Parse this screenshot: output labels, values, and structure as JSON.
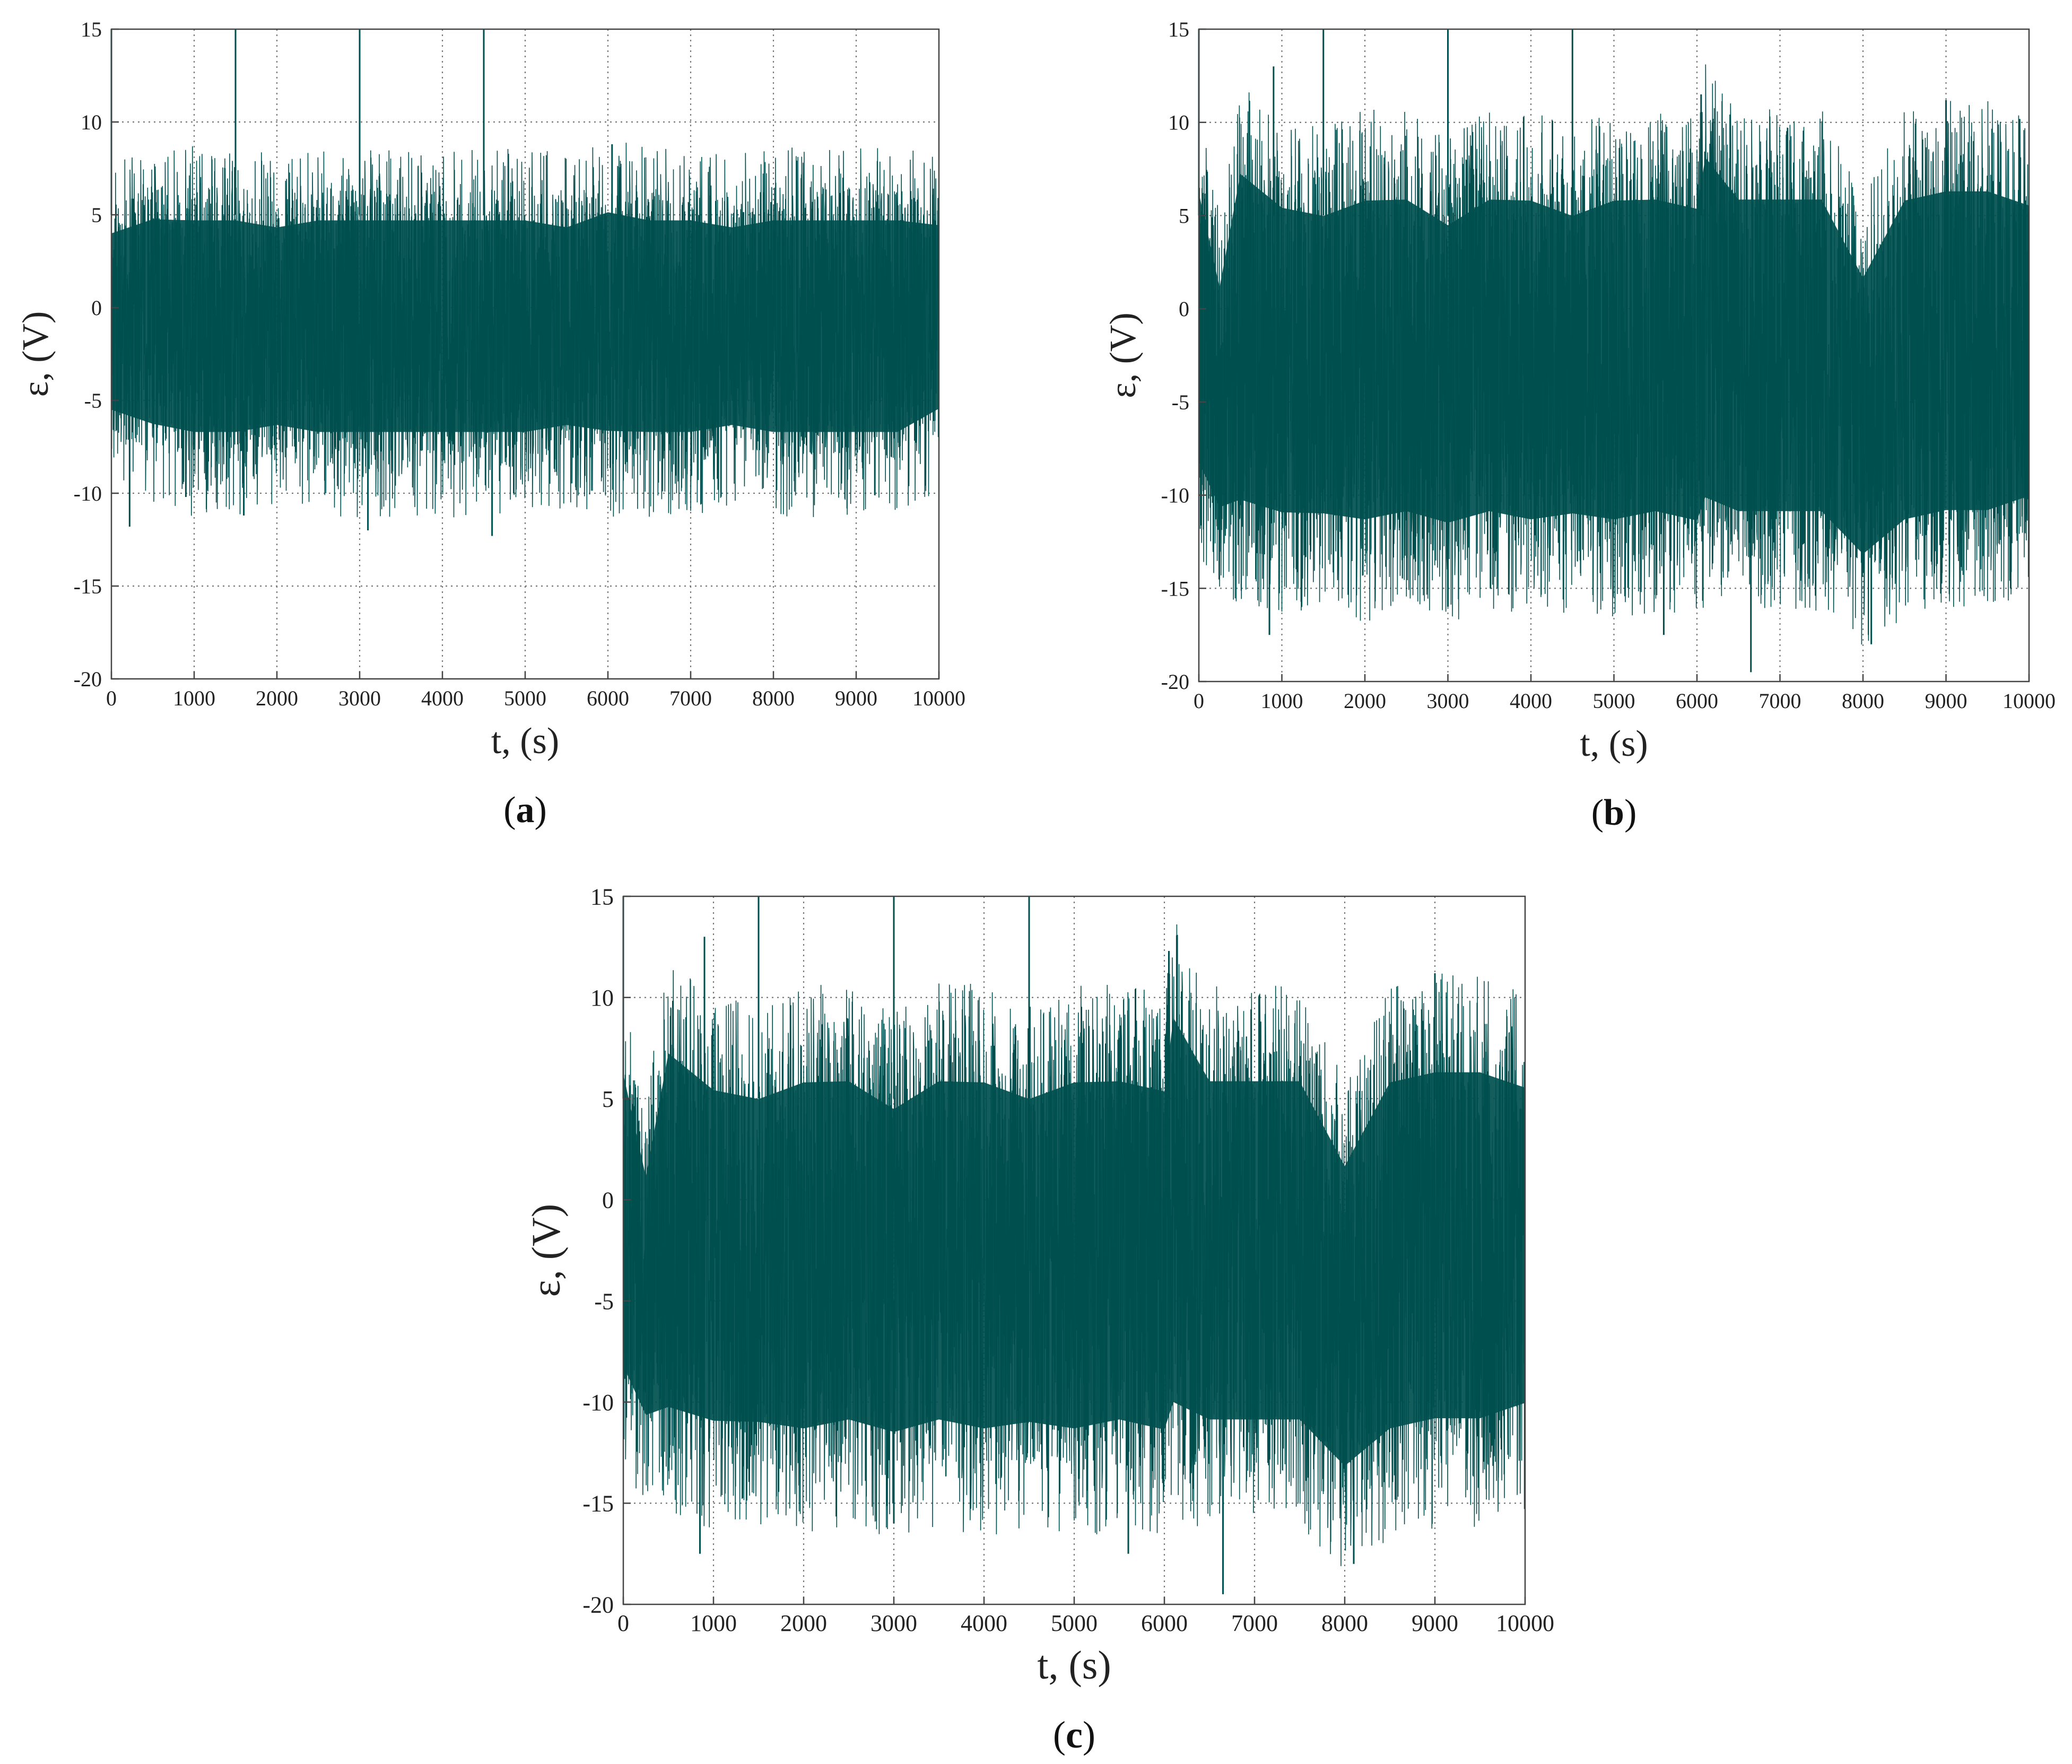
{
  "colors": {
    "signal": "#004f4f",
    "grid": "#777777",
    "frame": "#444444"
  },
  "chart_data": [
    {
      "type": "line",
      "panel_label": "a",
      "xlabel": "t, (s)",
      "ylabel": "ε, (V)",
      "xlim": [
        0,
        10000
      ],
      "ylim": [
        -20,
        15
      ],
      "xticks": [
        0,
        1000,
        2000,
        3000,
        4000,
        5000,
        6000,
        7000,
        8000,
        9000,
        10000
      ],
      "yticks": [
        -20,
        -15,
        -10,
        -5,
        0,
        5,
        10,
        15
      ],
      "grid": true,
      "series": [
        {
          "signal_envelope": {
            "t": [
              0,
              500,
              1000,
              1500,
              2000,
              2500,
              3000,
              3500,
              4000,
              4500,
              5000,
              5500,
              6000,
              6500,
              7000,
              7500,
              8000,
              8500,
              9000,
              9500,
              10000
            ],
            "upper": [
              5.5,
              6.5,
              6.5,
              6.5,
              6.0,
              6.5,
              6.5,
              6.5,
              6.5,
              6.5,
              6.5,
              6.0,
              7.0,
              6.5,
              6.5,
              6.0,
              6.5,
              6.5,
              6.5,
              6.5,
              6.0
            ],
            "lower": [
              -7.0,
              -8.0,
              -8.5,
              -8.5,
              -8.0,
              -8.5,
              -8.5,
              -8.5,
              -8.5,
              -8.5,
              -8.5,
              -8.0,
              -8.5,
              -8.5,
              -8.5,
              -8.0,
              -8.5,
              -8.5,
              -8.5,
              -8.5,
              -7.0
            ]
          },
          "spikes": [
            {
              "t": 0,
              "value": 15
            },
            {
              "t": 1500,
              "value": 15
            },
            {
              "t": 3000,
              "value": 15
            },
            {
              "t": 4500,
              "value": 15
            },
            {
              "t": 6050,
              "value": 8.8
            },
            {
              "t": 220,
              "value": -11.8
            },
            {
              "t": 1600,
              "value": -11.2
            },
            {
              "t": 3100,
              "value": -12.0
            },
            {
              "t": 4600,
              "value": -12.3
            },
            {
              "t": 900,
              "value": -10.2
            }
          ]
        }
      ]
    },
    {
      "type": "line",
      "panel_label": "b",
      "xlabel": "t, (s)",
      "ylabel": "ε, (V)",
      "xlim": [
        0,
        10000
      ],
      "ylim": [
        -20,
        15
      ],
      "xticks": [
        0,
        1000,
        2000,
        3000,
        4000,
        5000,
        6000,
        7000,
        8000,
        9000,
        10000
      ],
      "yticks": [
        -20,
        -15,
        -10,
        -5,
        0,
        5,
        10,
        15
      ],
      "grid": true,
      "series": [
        {
          "signal_envelope": {
            "t": [
              0,
              250,
              500,
              1000,
              1500,
              2000,
              2500,
              3000,
              3500,
              4000,
              4500,
              5000,
              5500,
              6000,
              6100,
              6500,
              7000,
              7500,
              8000,
              8500,
              9000,
              9500,
              10000
            ],
            "upper": [
              8.5,
              3.0,
              10.0,
              8.0,
              7.5,
              8.5,
              8.5,
              7.0,
              8.5,
              8.5,
              7.5,
              8.5,
              8.5,
              8.0,
              11.0,
              8.5,
              8.5,
              8.5,
              4.0,
              8.5,
              9.0,
              9.0,
              8.0
            ],
            "lower": [
              -10.5,
              -12.5,
              -13.0,
              -13.5,
              -13.5,
              -14.0,
              -13.5,
              -14.0,
              -13.5,
              -14.0,
              -13.5,
              -14.0,
              -13.5,
              -14.0,
              -13.0,
              -13.5,
              -13.5,
              -13.5,
              -15.5,
              -14.0,
              -13.5,
              -13.5,
              -12.5
            ]
          },
          "spikes": [
            {
              "t": 0,
              "value": 15
            },
            {
              "t": 1500,
              "value": 15
            },
            {
              "t": 3000,
              "value": 15
            },
            {
              "t": 4500,
              "value": 15
            },
            {
              "t": 6050,
              "value": 11.5
            },
            {
              "t": 900,
              "value": 13.0
            },
            {
              "t": 9000,
              "value": 11.2
            },
            {
              "t": 6650,
              "value": -19.5
            },
            {
              "t": 8100,
              "value": -18.0
            },
            {
              "t": 850,
              "value": -17.5
            },
            {
              "t": 5600,
              "value": -17.5
            },
            {
              "t": 3000,
              "value": -16.0
            }
          ]
        }
      ]
    },
    {
      "type": "line",
      "panel_label": "c",
      "xlabel": "t, (s)",
      "ylabel": "ε, (V)",
      "xlim": [
        0,
        10000
      ],
      "ylim": [
        -20,
        15
      ],
      "xticks": [
        0,
        1000,
        2000,
        3000,
        4000,
        5000,
        6000,
        7000,
        8000,
        9000,
        10000
      ],
      "yticks": [
        -20,
        -15,
        -10,
        -5,
        0,
        5,
        10,
        15
      ],
      "grid": true,
      "series": [
        {
          "signal_envelope": {
            "t": [
              0,
              250,
              500,
              1000,
              1500,
              2000,
              2500,
              3000,
              3500,
              4000,
              4500,
              5000,
              5500,
              6000,
              6100,
              6500,
              7000,
              7500,
              8000,
              8500,
              9000,
              9500,
              10000
            ],
            "upper": [
              8.5,
              3.0,
              10.0,
              8.0,
              7.5,
              8.5,
              8.5,
              7.0,
              8.5,
              8.5,
              7.5,
              8.5,
              8.5,
              8.0,
              12.0,
              8.5,
              8.5,
              8.5,
              4.0,
              8.5,
              9.0,
              9.0,
              8.0
            ],
            "lower": [
              -10.5,
              -12.5,
              -13.0,
              -13.5,
              -13.5,
              -14.0,
              -13.5,
              -14.0,
              -13.5,
              -14.0,
              -13.5,
              -14.0,
              -13.5,
              -14.0,
              -13.0,
              -13.5,
              -13.5,
              -13.5,
              -15.5,
              -14.0,
              -13.5,
              -13.5,
              -12.5
            ]
          },
          "spikes": [
            {
              "t": 0,
              "value": 15
            },
            {
              "t": 1500,
              "value": 15
            },
            {
              "t": 3000,
              "value": 15
            },
            {
              "t": 4500,
              "value": 15
            },
            {
              "t": 6050,
              "value": 12.3
            },
            {
              "t": 900,
              "value": 13.0
            },
            {
              "t": 9000,
              "value": 11.2
            },
            {
              "t": 6650,
              "value": -19.5
            },
            {
              "t": 8100,
              "value": -18.0
            },
            {
              "t": 850,
              "value": -17.5
            },
            {
              "t": 5600,
              "value": -17.5
            },
            {
              "t": 3000,
              "value": -16.0
            }
          ]
        }
      ]
    }
  ],
  "captions": {
    "a": "a",
    "b": "b",
    "c": "c"
  }
}
